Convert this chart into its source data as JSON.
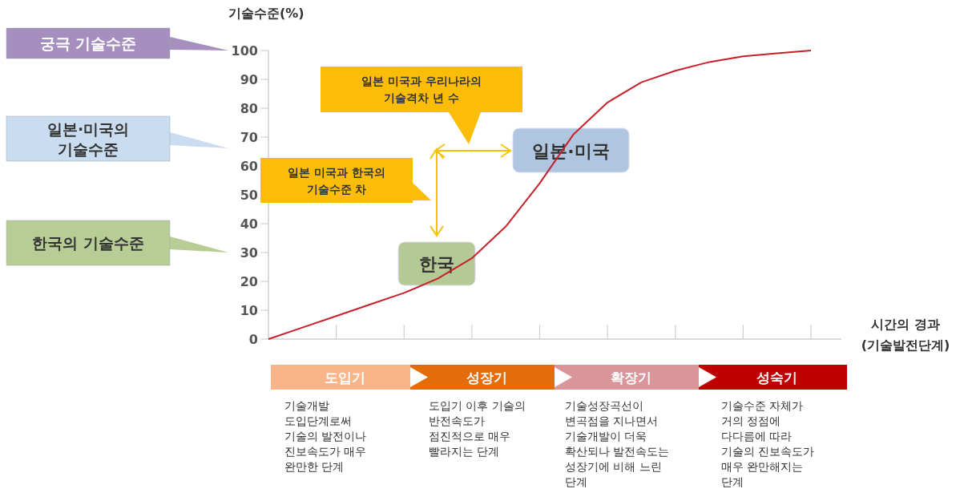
{
  "chart_data": {
    "type": "line",
    "ylabel": "기술수준(%)",
    "xlabel": "시간의 경과\n(기술발전단계)",
    "categories": [
      null,
      null,
      null,
      null,
      null,
      null,
      null,
      null,
      null,
      null,
      null,
      null,
      null,
      null,
      null,
      null,
      null
    ],
    "series": [
      {
        "color": "#c8202a",
        "values": [
          0,
          4,
          8,
          12,
          16,
          21,
          28,
          39,
          54,
          71,
          82,
          89,
          93,
          96,
          98,
          99,
          100
        ]
      }
    ],
    "ylim": [
      0,
      100
    ],
    "yticks": [
      0,
      10,
      20,
      30,
      40,
      50,
      60,
      70,
      80,
      90,
      100
    ],
    "tick_labels": "y",
    "marker": "none",
    "line_style": "solid",
    "annotations": [
      "궁극 기술수준",
      "일본·미국의\n기술수준",
      "한국의 기술수준",
      "일본 미국과 우리나라의\n기술격차 년 수",
      "일본 미국과 한국의\n기술수준 차",
      "한국",
      "일본·미국",
      "도입기",
      "성장기",
      "확장기",
      "성숙기",
      "기술개발\n도입단계로써\n기술의 발전이나\n진보속도가 매우\n완만한 단계",
      "도입기 이후 기술의\n반전속도가\n점진적으로 매우\n빨라지는 단계",
      "기술성장곡선이\n변곡점을 지나면서\n기술개발이 더욱\n확산되나 발전속도는\n성장기에 비해 느린\n단계",
      "기술수준 자체가\n거의 정점에\n다다름에 따라\n기술의 진보속도가\n매우 완만해지는\n단계"
    ]
  }
}
